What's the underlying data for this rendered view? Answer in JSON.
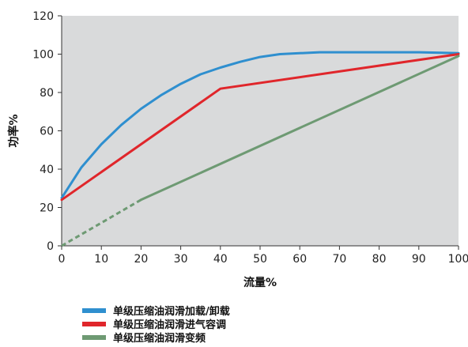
{
  "chart_data": {
    "type": "line",
    "xlabel": "流量%",
    "ylabel": "功率%",
    "xlim": [
      0,
      100
    ],
    "ylim": [
      0,
      120
    ],
    "x_ticks": [
      0,
      10,
      20,
      30,
      40,
      50,
      60,
      70,
      80,
      90,
      100
    ],
    "y_ticks": [
      0,
      20,
      40,
      60,
      80,
      100,
      120
    ],
    "grid": false,
    "legend_position": "bottom-left",
    "background_color": "#d9dadb",
    "series": [
      {
        "name": "单级压缩油润滑加载/卸载",
        "color": "#2f8fcf",
        "x": [
          0,
          5,
          10,
          15,
          20,
          25,
          30,
          35,
          40,
          45,
          50,
          55,
          60,
          65,
          70,
          80,
          90,
          100
        ],
        "y": [
          25,
          41,
          53,
          63,
          71.5,
          78.5,
          84.5,
          89.5,
          93,
          96,
          98.5,
          100,
          100.5,
          101,
          101,
          101,
          101,
          100.5
        ]
      },
      {
        "name": "单级压缩油润滑进气容调",
        "color": "#e0262b",
        "x": [
          0,
          40,
          100
        ],
        "y": [
          24,
          82,
          100
        ]
      },
      {
        "name": "单级压缩油润滑变频",
        "color": "#6e9a73",
        "x": [
          20,
          100
        ],
        "y": [
          24,
          99
        ],
        "dashed_extension": {
          "x": [
            0,
            20
          ],
          "y": [
            0,
            24
          ]
        }
      }
    ]
  }
}
